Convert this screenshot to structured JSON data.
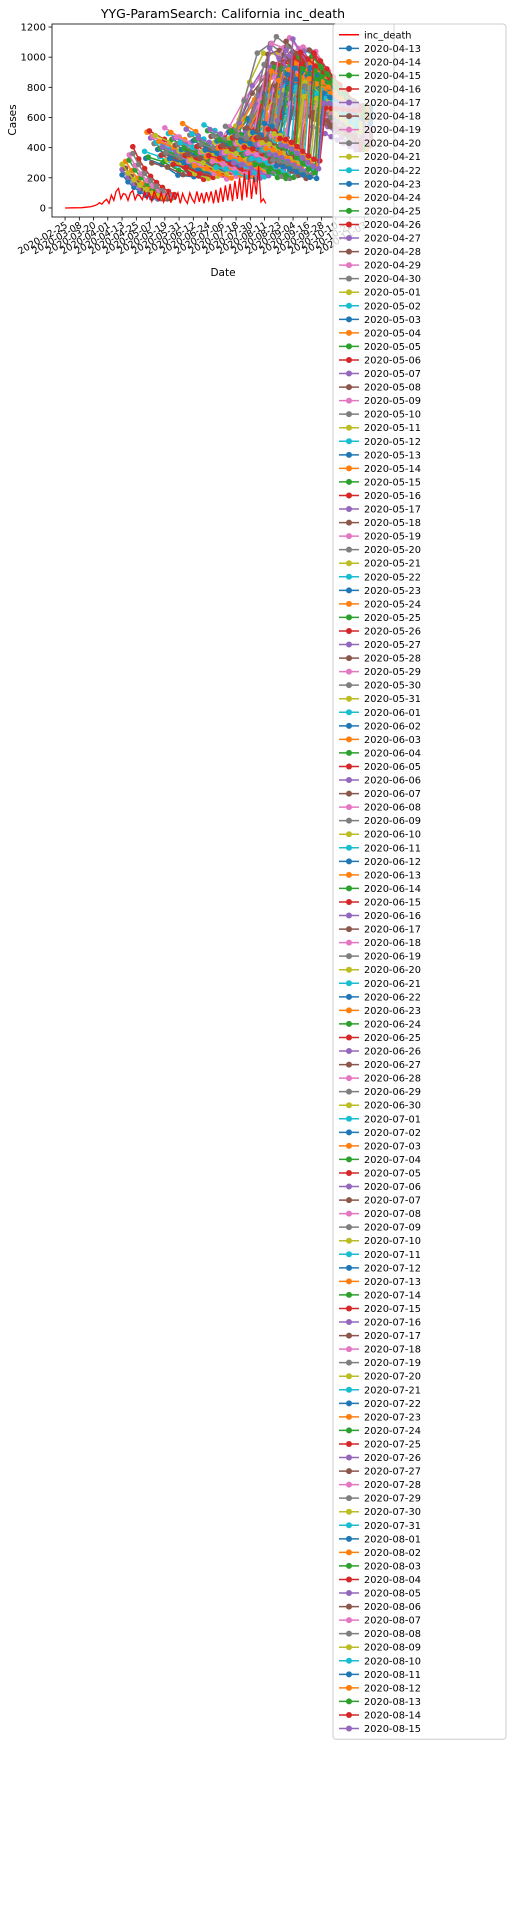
{
  "chart_data": {
    "type": "line",
    "title": "YYG-ParamSearch: California inc_death",
    "xlabel": "Date",
    "ylabel": "Cases",
    "ylim": [
      -60,
      1220
    ],
    "yticks": [
      0,
      200,
      400,
      600,
      800,
      1000,
      1200
    ],
    "xlim": [
      "2020-02-14",
      "2020-11-28"
    ],
    "xticks": [
      "2020-02-25",
      "2020-03-08",
      "2020-03-20",
      "2020-04-01",
      "2020-04-13",
      "2020-04-25",
      "2020-05-07",
      "2020-05-19",
      "2020-05-31",
      "2020-06-12",
      "2020-06-24",
      "2020-07-06",
      "2020-07-18",
      "2020-07-30",
      "2020-08-11",
      "2020-08-23",
      "2020-09-04",
      "2020-09-16",
      "2020-09-28",
      "2020-10-10",
      "2020-10-22",
      "2020-11-03"
    ],
    "grid": false,
    "legend_position": "outside-right",
    "observed": {
      "name": "inc_death",
      "color": "#ff0000",
      "points": [
        [
          "2020-02-25",
          0
        ],
        [
          "2020-03-03",
          1
        ],
        [
          "2020-03-10",
          2
        ],
        [
          "2020-03-14",
          5
        ],
        [
          "2020-03-18",
          9
        ],
        [
          "2020-03-21",
          16
        ],
        [
          "2020-03-23",
          22
        ],
        [
          "2020-03-25",
          35
        ],
        [
          "2020-03-27",
          25
        ],
        [
          "2020-03-29",
          45
        ],
        [
          "2020-03-31",
          58
        ],
        [
          "2020-04-02",
          30
        ],
        [
          "2020-04-04",
          85
        ],
        [
          "2020-04-06",
          50
        ],
        [
          "2020-04-08",
          110
        ],
        [
          "2020-04-10",
          130
        ],
        [
          "2020-04-12",
          60
        ],
        [
          "2020-04-14",
          95
        ],
        [
          "2020-04-16",
          90
        ],
        [
          "2020-04-18",
          50
        ],
        [
          "2020-04-20",
          100
        ],
        [
          "2020-04-22",
          115
        ],
        [
          "2020-04-24",
          55
        ],
        [
          "2020-04-26",
          90
        ],
        [
          "2020-04-28",
          80
        ],
        [
          "2020-04-30",
          55
        ],
        [
          "2020-05-02",
          105
        ],
        [
          "2020-05-04",
          60
        ],
        [
          "2020-05-06",
          95
        ],
        [
          "2020-05-08",
          45
        ],
        [
          "2020-05-10",
          110
        ],
        [
          "2020-05-12",
          70
        ],
        [
          "2020-05-14",
          50
        ],
        [
          "2020-05-16",
          100
        ],
        [
          "2020-05-18",
          40
        ],
        [
          "2020-05-20",
          85
        ],
        [
          "2020-05-22",
          105
        ],
        [
          "2020-05-24",
          35
        ],
        [
          "2020-05-26",
          90
        ],
        [
          "2020-05-28",
          60
        ],
        [
          "2020-05-30",
          100
        ],
        [
          "2020-06-01",
          30
        ],
        [
          "2020-06-03",
          95
        ],
        [
          "2020-06-05",
          55
        ],
        [
          "2020-06-07",
          30
        ],
        [
          "2020-06-09",
          100
        ],
        [
          "2020-06-11",
          60
        ],
        [
          "2020-06-13",
          35
        ],
        [
          "2020-06-15",
          110
        ],
        [
          "2020-06-17",
          40
        ],
        [
          "2020-06-19",
          100
        ],
        [
          "2020-06-21",
          30
        ],
        [
          "2020-06-23",
          105
        ],
        [
          "2020-06-25",
          50
        ],
        [
          "2020-06-27",
          110
        ],
        [
          "2020-06-29",
          30
        ],
        [
          "2020-07-01",
          120
        ],
        [
          "2020-07-03",
          35
        ],
        [
          "2020-07-05",
          135
        ],
        [
          "2020-07-07",
          40
        ],
        [
          "2020-07-09",
          150
        ],
        [
          "2020-07-11",
          50
        ],
        [
          "2020-07-13",
          160
        ],
        [
          "2020-07-15",
          45
        ],
        [
          "2020-07-17",
          180
        ],
        [
          "2020-07-19",
          60
        ],
        [
          "2020-07-21",
          200
        ],
        [
          "2020-07-23",
          50
        ],
        [
          "2020-07-25",
          230
        ],
        [
          "2020-07-27",
          70
        ],
        [
          "2020-07-29",
          250
        ],
        [
          "2020-07-31",
          60
        ],
        [
          "2020-08-02",
          210
        ],
        [
          "2020-08-04",
          90
        ],
        [
          "2020-08-06",
          280
        ],
        [
          "2020-08-08",
          40
        ],
        [
          "2020-08-10",
          60
        ],
        [
          "2020-08-12",
          30
        ]
      ]
    },
    "forecast_families": [
      {
        "id": "april_decay",
        "start": "2020-04-13",
        "end": "2020-05-03",
        "v0": 260,
        "v_end": 120
      },
      {
        "id": "april_early",
        "start": "2020-04-22",
        "end": "2020-05-12",
        "v0": 400,
        "v_end": 320
      },
      {
        "id": "may_wave",
        "start": "2020-05-04",
        "end": "2020-10-01",
        "v0": 520,
        "peak": 1050
      },
      {
        "id": "june_wave",
        "start": "2020-06-01",
        "end": "2020-10-31",
        "v0": 300,
        "peak": 1150
      }
    ],
    "legend_entries": [
      {
        "label": "inc_death",
        "color": "#ff0000",
        "type": "line"
      },
      {
        "label": "2020-04-13",
        "color": "#1f77b4",
        "type": "marker"
      },
      {
        "label": "2020-04-14",
        "color": "#ff7f0e",
        "type": "marker"
      },
      {
        "label": "2020-04-15",
        "color": "#2ca02c",
        "type": "marker"
      },
      {
        "label": "2020-04-16",
        "color": "#d62728",
        "type": "marker"
      },
      {
        "label": "2020-04-17",
        "color": "#9467bd",
        "type": "marker"
      },
      {
        "label": "2020-04-18",
        "color": "#8c564b",
        "type": "marker"
      },
      {
        "label": "2020-04-19",
        "color": "#e377c2",
        "type": "marker"
      },
      {
        "label": "2020-04-20",
        "color": "#7f7f7f",
        "type": "marker"
      },
      {
        "label": "2020-04-21",
        "color": "#bcbd22",
        "type": "marker"
      },
      {
        "label": "2020-04-22",
        "color": "#17becf",
        "type": "marker"
      },
      {
        "label": "2020-04-23",
        "color": "#1f77b4",
        "type": "marker"
      },
      {
        "label": "2020-04-24",
        "color": "#ff7f0e",
        "type": "marker"
      },
      {
        "label": "2020-04-25",
        "color": "#2ca02c",
        "type": "marker"
      },
      {
        "label": "2020-04-26",
        "color": "#d62728",
        "type": "marker"
      },
      {
        "label": "2020-04-27",
        "color": "#9467bd",
        "type": "marker"
      },
      {
        "label": "2020-04-28",
        "color": "#8c564b",
        "type": "marker"
      },
      {
        "label": "2020-04-29",
        "color": "#e377c2",
        "type": "marker"
      },
      {
        "label": "2020-04-30",
        "color": "#7f7f7f",
        "type": "marker"
      },
      {
        "label": "2020-05-01",
        "color": "#bcbd22",
        "type": "marker"
      },
      {
        "label": "2020-05-02",
        "color": "#17becf",
        "type": "marker"
      },
      {
        "label": "2020-05-03",
        "color": "#1f77b4",
        "type": "marker"
      },
      {
        "label": "2020-05-04",
        "color": "#ff7f0e",
        "type": "marker"
      },
      {
        "label": "2020-05-05",
        "color": "#2ca02c",
        "type": "marker"
      },
      {
        "label": "2020-05-06",
        "color": "#d62728",
        "type": "marker"
      },
      {
        "label": "2020-05-07",
        "color": "#9467bd",
        "type": "marker"
      },
      {
        "label": "2020-05-08",
        "color": "#8c564b",
        "type": "marker"
      },
      {
        "label": "2020-05-09",
        "color": "#e377c2",
        "type": "marker"
      },
      {
        "label": "2020-05-10",
        "color": "#7f7f7f",
        "type": "marker"
      },
      {
        "label": "2020-05-11",
        "color": "#bcbd22",
        "type": "marker"
      },
      {
        "label": "2020-05-12",
        "color": "#17becf",
        "type": "marker"
      },
      {
        "label": "2020-05-13",
        "color": "#1f77b4",
        "type": "marker"
      },
      {
        "label": "2020-05-14",
        "color": "#ff7f0e",
        "type": "marker"
      },
      {
        "label": "2020-05-15",
        "color": "#2ca02c",
        "type": "marker"
      },
      {
        "label": "2020-05-16",
        "color": "#d62728",
        "type": "marker"
      },
      {
        "label": "2020-05-17",
        "color": "#9467bd",
        "type": "marker"
      },
      {
        "label": "2020-05-18",
        "color": "#8c564b",
        "type": "marker"
      },
      {
        "label": "2020-05-19",
        "color": "#e377c2",
        "type": "marker"
      },
      {
        "label": "2020-05-20",
        "color": "#7f7f7f",
        "type": "marker"
      },
      {
        "label": "2020-05-21",
        "color": "#bcbd22",
        "type": "marker"
      },
      {
        "label": "2020-05-22",
        "color": "#17becf",
        "type": "marker"
      },
      {
        "label": "2020-05-23",
        "color": "#1f77b4",
        "type": "marker"
      },
      {
        "label": "2020-05-24",
        "color": "#ff7f0e",
        "type": "marker"
      },
      {
        "label": "2020-05-25",
        "color": "#2ca02c",
        "type": "marker"
      },
      {
        "label": "2020-05-26",
        "color": "#d62728",
        "type": "marker"
      },
      {
        "label": "2020-05-27",
        "color": "#9467bd",
        "type": "marker"
      },
      {
        "label": "2020-05-28",
        "color": "#8c564b",
        "type": "marker"
      },
      {
        "label": "2020-05-29",
        "color": "#e377c2",
        "type": "marker"
      },
      {
        "label": "2020-05-30",
        "color": "#7f7f7f",
        "type": "marker"
      },
      {
        "label": "2020-05-31",
        "color": "#bcbd22",
        "type": "marker"
      },
      {
        "label": "2020-06-01",
        "color": "#17becf",
        "type": "marker"
      },
      {
        "label": "2020-06-02",
        "color": "#1f77b4",
        "type": "marker"
      },
      {
        "label": "2020-06-03",
        "color": "#ff7f0e",
        "type": "marker"
      },
      {
        "label": "2020-06-04",
        "color": "#2ca02c",
        "type": "marker"
      },
      {
        "label": "2020-06-05",
        "color": "#d62728",
        "type": "marker"
      },
      {
        "label": "2020-06-06",
        "color": "#9467bd",
        "type": "marker"
      },
      {
        "label": "2020-06-07",
        "color": "#8c564b",
        "type": "marker"
      },
      {
        "label": "2020-06-08",
        "color": "#e377c2",
        "type": "marker"
      },
      {
        "label": "2020-06-09",
        "color": "#7f7f7f",
        "type": "marker"
      },
      {
        "label": "2020-06-10",
        "color": "#bcbd22",
        "type": "marker"
      },
      {
        "label": "2020-06-11",
        "color": "#17becf",
        "type": "marker"
      },
      {
        "label": "2020-06-12",
        "color": "#1f77b4",
        "type": "marker"
      },
      {
        "label": "2020-06-13",
        "color": "#ff7f0e",
        "type": "marker"
      },
      {
        "label": "2020-06-14",
        "color": "#2ca02c",
        "type": "marker"
      },
      {
        "label": "2020-06-15",
        "color": "#d62728",
        "type": "marker"
      },
      {
        "label": "2020-06-16",
        "color": "#9467bd",
        "type": "marker"
      },
      {
        "label": "2020-06-17",
        "color": "#8c564b",
        "type": "marker"
      },
      {
        "label": "2020-06-18",
        "color": "#e377c2",
        "type": "marker"
      },
      {
        "label": "2020-06-19",
        "color": "#7f7f7f",
        "type": "marker"
      },
      {
        "label": "2020-06-20",
        "color": "#bcbd22",
        "type": "marker"
      },
      {
        "label": "2020-06-21",
        "color": "#17becf",
        "type": "marker"
      },
      {
        "label": "2020-06-22",
        "color": "#1f77b4",
        "type": "marker"
      },
      {
        "label": "2020-06-23",
        "color": "#ff7f0e",
        "type": "marker"
      },
      {
        "label": "2020-06-24",
        "color": "#2ca02c",
        "type": "marker"
      },
      {
        "label": "2020-06-25",
        "color": "#d62728",
        "type": "marker"
      },
      {
        "label": "2020-06-26",
        "color": "#9467bd",
        "type": "marker"
      },
      {
        "label": "2020-06-27",
        "color": "#8c564b",
        "type": "marker"
      },
      {
        "label": "2020-06-28",
        "color": "#e377c2",
        "type": "marker"
      },
      {
        "label": "2020-06-29",
        "color": "#7f7f7f",
        "type": "marker"
      },
      {
        "label": "2020-06-30",
        "color": "#bcbd22",
        "type": "marker"
      },
      {
        "label": "2020-07-01",
        "color": "#17becf",
        "type": "marker"
      },
      {
        "label": "2020-07-02",
        "color": "#1f77b4",
        "type": "marker"
      },
      {
        "label": "2020-07-03",
        "color": "#ff7f0e",
        "type": "marker"
      },
      {
        "label": "2020-07-04",
        "color": "#2ca02c",
        "type": "marker"
      },
      {
        "label": "2020-07-05",
        "color": "#d62728",
        "type": "marker"
      },
      {
        "label": "2020-07-06",
        "color": "#9467bd",
        "type": "marker"
      },
      {
        "label": "2020-07-07",
        "color": "#8c564b",
        "type": "marker"
      },
      {
        "label": "2020-07-08",
        "color": "#e377c2",
        "type": "marker"
      },
      {
        "label": "2020-07-09",
        "color": "#7f7f7f",
        "type": "marker"
      },
      {
        "label": "2020-07-10",
        "color": "#bcbd22",
        "type": "marker"
      },
      {
        "label": "2020-07-11",
        "color": "#17becf",
        "type": "marker"
      },
      {
        "label": "2020-07-12",
        "color": "#1f77b4",
        "type": "marker"
      },
      {
        "label": "2020-07-13",
        "color": "#ff7f0e",
        "type": "marker"
      },
      {
        "label": "2020-07-14",
        "color": "#2ca02c",
        "type": "marker"
      },
      {
        "label": "2020-07-15",
        "color": "#d62728",
        "type": "marker"
      },
      {
        "label": "2020-07-16",
        "color": "#9467bd",
        "type": "marker"
      },
      {
        "label": "2020-07-17",
        "color": "#8c564b",
        "type": "marker"
      },
      {
        "label": "2020-07-18",
        "color": "#e377c2",
        "type": "marker"
      },
      {
        "label": "2020-07-19",
        "color": "#7f7f7f",
        "type": "marker"
      },
      {
        "label": "2020-07-20",
        "color": "#bcbd22",
        "type": "marker"
      },
      {
        "label": "2020-07-21",
        "color": "#17becf",
        "type": "marker"
      },
      {
        "label": "2020-07-22",
        "color": "#1f77b4",
        "type": "marker"
      },
      {
        "label": "2020-07-23",
        "color": "#ff7f0e",
        "type": "marker"
      },
      {
        "label": "2020-07-24",
        "color": "#2ca02c",
        "type": "marker"
      },
      {
        "label": "2020-07-25",
        "color": "#d62728",
        "type": "marker"
      },
      {
        "label": "2020-07-26",
        "color": "#9467bd",
        "type": "marker"
      },
      {
        "label": "2020-07-27",
        "color": "#8c564b",
        "type": "marker"
      },
      {
        "label": "2020-07-28",
        "color": "#e377c2",
        "type": "marker"
      },
      {
        "label": "2020-07-29",
        "color": "#7f7f7f",
        "type": "marker"
      },
      {
        "label": "2020-07-30",
        "color": "#bcbd22",
        "type": "marker"
      },
      {
        "label": "2020-07-31",
        "color": "#17becf",
        "type": "marker"
      },
      {
        "label": "2020-08-01",
        "color": "#1f77b4",
        "type": "marker"
      },
      {
        "label": "2020-08-02",
        "color": "#ff7f0e",
        "type": "marker"
      },
      {
        "label": "2020-08-03",
        "color": "#2ca02c",
        "type": "marker"
      },
      {
        "label": "2020-08-04",
        "color": "#d62728",
        "type": "marker"
      },
      {
        "label": "2020-08-05",
        "color": "#9467bd",
        "type": "marker"
      },
      {
        "label": "2020-08-06",
        "color": "#8c564b",
        "type": "marker"
      },
      {
        "label": "2020-08-07",
        "color": "#e377c2",
        "type": "marker"
      },
      {
        "label": "2020-08-08",
        "color": "#7f7f7f",
        "type": "marker"
      },
      {
        "label": "2020-08-09",
        "color": "#bcbd22",
        "type": "marker"
      },
      {
        "label": "2020-08-10",
        "color": "#17becf",
        "type": "marker"
      },
      {
        "label": "2020-08-11",
        "color": "#1f77b4",
        "type": "marker"
      },
      {
        "label": "2020-08-12",
        "color": "#ff7f0e",
        "type": "marker"
      },
      {
        "label": "2020-08-13",
        "color": "#2ca02c",
        "type": "marker"
      },
      {
        "label": "2020-08-14",
        "color": "#d62728",
        "type": "marker"
      },
      {
        "label": "2020-08-15",
        "color": "#9467bd",
        "type": "marker"
      }
    ]
  }
}
